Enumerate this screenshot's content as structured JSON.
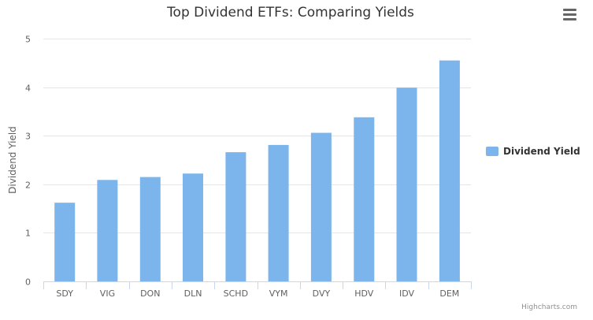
{
  "chart_data": {
    "type": "bar",
    "title": "Top Dividend ETFs: Comparing Yields",
    "categories": [
      "SDY",
      "VIG",
      "DON",
      "DLN",
      "SCHD",
      "VYM",
      "DVY",
      "HDV",
      "IDV",
      "DEM"
    ],
    "series": [
      {
        "name": "Dividend Yield",
        "values": [
          1.62,
          2.09,
          2.15,
          2.22,
          2.66,
          2.81,
          3.06,
          3.38,
          3.99,
          4.55
        ],
        "color": "#7cb5ec"
      }
    ],
    "xlabel": "",
    "ylabel": "Dividend Yield",
    "ylim": [
      0,
      5
    ],
    "yticks": [
      "0",
      "1",
      "2",
      "3",
      "4",
      "5"
    ],
    "grid": true,
    "legend_position": "right"
  },
  "credits": "Highcharts.com",
  "colors": {
    "bar": "#7cb5ec",
    "grid": "#e6e6e6",
    "axis_line": "#ccd6eb",
    "menu_icon": "#666666"
  },
  "icons": {
    "menu": "hamburger-menu-icon"
  }
}
